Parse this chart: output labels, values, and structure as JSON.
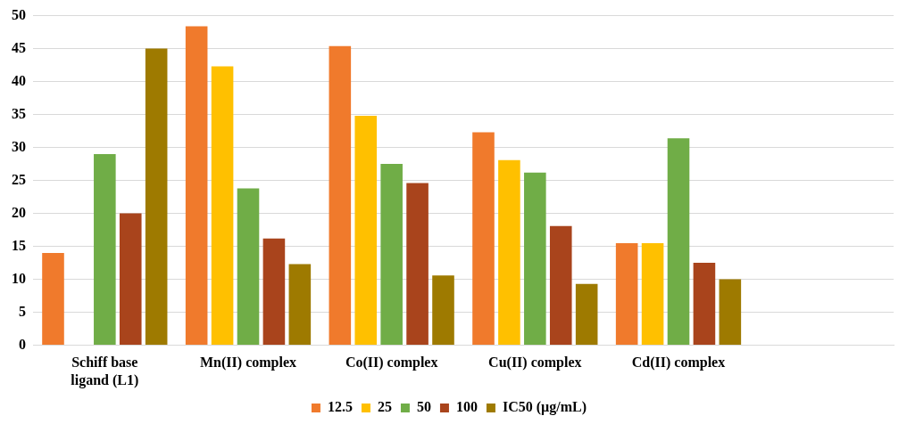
{
  "chart_data": {
    "type": "bar",
    "categories": [
      "Schiff base\nligand (L1)",
      "Mn(II) complex",
      "Co(II) complex",
      "Cu(II) complex",
      "Cd(II) complex",
      null
    ],
    "series": [
      {
        "name": "12.5",
        "color": "#f07a2c",
        "values": [
          14,
          48.4,
          45.4,
          32.3,
          15.5,
          null
        ]
      },
      {
        "name": "25",
        "color": "#ffc000",
        "values": [
          0,
          42.3,
          34.8,
          28.1,
          15.5,
          null
        ]
      },
      {
        "name": "50",
        "color": "#70ad47",
        "values": [
          29,
          23.8,
          27.5,
          26.2,
          31.4,
          null
        ]
      },
      {
        "name": "100",
        "color": "#a9441c",
        "values": [
          20,
          16.2,
          24.6,
          18.1,
          12.5,
          null
        ]
      },
      {
        "name": "IC50 (µg/mL)",
        "color": "#9e7a00",
        "values": [
          45,
          12.3,
          10.6,
          9.3,
          10,
          null
        ]
      }
    ],
    "ylim": [
      0,
      50
    ],
    "yticks": [
      0,
      5,
      10,
      15,
      20,
      25,
      30,
      35,
      40,
      45,
      50
    ],
    "grid": "y",
    "legend": "bottom"
  }
}
